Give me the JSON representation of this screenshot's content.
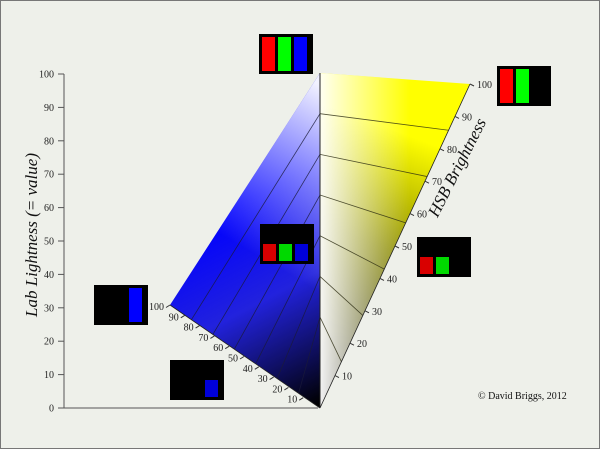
{
  "left_axis": {
    "title": "Lab Lightness (= value)",
    "ticks": [
      "0",
      "10",
      "20",
      "30",
      "40",
      "50",
      "60",
      "70",
      "80",
      "90",
      "100"
    ]
  },
  "right_axis": {
    "title": "HSB Brightness",
    "ticks": [
      "10",
      "20",
      "30",
      "40",
      "50",
      "60",
      "70",
      "80",
      "90",
      "100"
    ]
  },
  "blue_axis": {
    "ticks": [
      "10",
      "20",
      "30",
      "40",
      "50",
      "60",
      "70",
      "80",
      "90",
      "100"
    ]
  },
  "credit": "©  David Briggs, 2012",
  "swatch_sets": [
    {
      "id": "top",
      "channels": [
        "red",
        "green",
        "blue"
      ],
      "levels": [
        1,
        1,
        1
      ]
    },
    {
      "id": "middle",
      "channels": [
        "red",
        "green",
        "blue"
      ],
      "levels": [
        0.5,
        0.5,
        0.5
      ]
    },
    {
      "id": "yellow-top",
      "channels": [
        "red",
        "green"
      ],
      "levels": [
        1,
        1
      ]
    },
    {
      "id": "yellow-mid",
      "channels": [
        "red",
        "green"
      ],
      "levels": [
        0.5,
        0.5
      ]
    },
    {
      "id": "blue-top",
      "channels": [
        "blue"
      ],
      "levels": [
        1
      ]
    },
    {
      "id": "blue-low",
      "channels": [
        "blue"
      ],
      "levels": [
        0.5
      ]
    }
  ],
  "colors": {
    "background": "#eef0ea",
    "blue": "#0000ff",
    "yellow": "#ffff00",
    "red": "#ff0000",
    "green": "#00ff00"
  }
}
